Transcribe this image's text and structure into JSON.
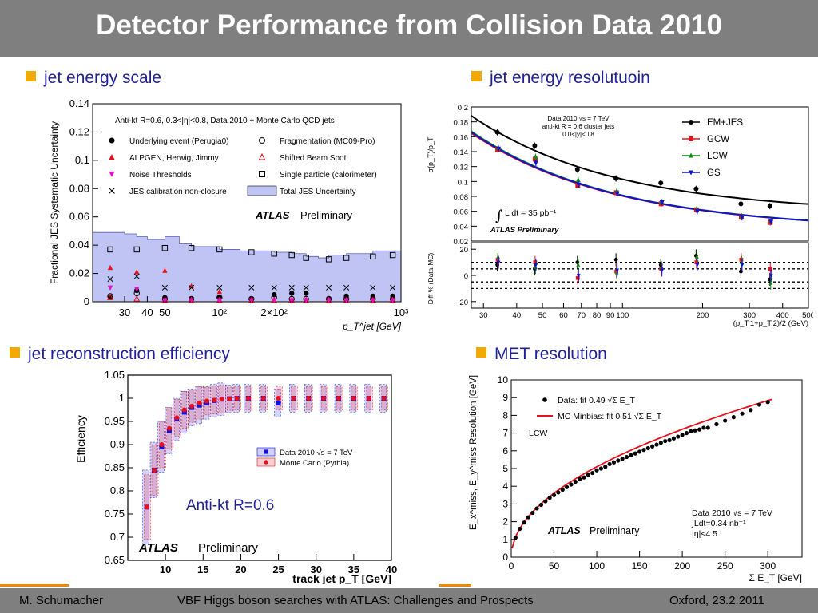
{
  "title": "Detector Performance from Collision Data 2010",
  "colors": {
    "accent_bullet": "#f2a900",
    "header_bg": "#7f7f7f",
    "bullet_text": "#1f1f9a"
  },
  "bullets": {
    "jes": "jet energy scale",
    "jer": "jet energy resolutuoin",
    "eff": "jet reconstruction efficiency",
    "met": "MET resolution"
  },
  "footer": {
    "author": "M. Schumacher",
    "talk": "VBF Higgs boson searches with ATLAS: Challenges and Prospects",
    "place_date": "Oxford, 23.2.2011"
  },
  "chart_data": [
    {
      "id": "jes",
      "type": "scatter",
      "title": "Anti-kt R=0.6, 0.3<|η|<0.8, Data 2010 + Monte Carlo QCD jets",
      "ylabel": "Fractional JES Systematic Uncertainty",
      "xlabel": "p_T^jet [GeV]",
      "xscale": "log",
      "xlim": [
        20,
        1000
      ],
      "ylim": [
        0,
        0.14
      ],
      "yticks": [
        "0",
        "0.02",
        "0.04",
        "0.06",
        "0.08",
        "0.1",
        "0.12",
        "0.14"
      ],
      "xticks": [
        {
          "v": 30,
          "label": "30"
        },
        {
          "v": 40,
          "label": "40"
        },
        {
          "v": 50,
          "label": "50"
        },
        {
          "v": 100,
          "label": "10²"
        },
        {
          "v": 200,
          "label": "2×10²"
        },
        {
          "v": 1000,
          "label": "10³"
        }
      ],
      "watermark": {
        "bold": "ATLAS",
        "rest": "Preliminary"
      },
      "legend": [
        {
          "label": "Underlying event (Perugia0)",
          "marker": "dot",
          "color": "#000000"
        },
        {
          "label": "Fragmentation (MC09-Pro)",
          "marker": "circle-open",
          "color": "#000000"
        },
        {
          "label": "ALPGEN, Herwig, Jimmy",
          "marker": "triangle",
          "color": "#e8101a"
        },
        {
          "label": "Shifted Beam Spot",
          "marker": "triangle-open",
          "color": "#e8101a"
        },
        {
          "label": "Noise Thresholds",
          "marker": "triangle-down",
          "color": "#e010c8"
        },
        {
          "label": "Single particle (calorimeter)",
          "marker": "square-open",
          "color": "#000000"
        },
        {
          "label": "JES calibration non-closure",
          "marker": "cross",
          "color": "#000000"
        },
        {
          "label": "Total JES Uncertainty",
          "marker": "band",
          "color": "#c0c4f4"
        }
      ],
      "band": {
        "x": [
          20,
          30,
          35,
          40,
          45,
          50,
          60,
          70,
          80,
          100,
          130,
          160,
          200,
          250,
          300,
          350,
          400,
          500,
          700,
          1000
        ],
        "y": [
          0.049,
          0.048,
          0.046,
          0.044,
          0.044,
          0.046,
          0.041,
          0.039,
          0.039,
          0.037,
          0.036,
          0.036,
          0.035,
          0.034,
          0.032,
          0.031,
          0.033,
          0.034,
          0.036,
          0.037
        ]
      },
      "series": [
        {
          "name": "Underlying event (Perugia0)",
          "marker": "dot",
          "color": "#000000",
          "x": [
            25,
            35,
            50,
            70,
            100,
            150,
            200,
            250,
            300,
            400,
            500,
            700,
            900
          ],
          "y": [
            0.003,
            0.008,
            0.003,
            0.002,
            0.003,
            0.002,
            0.005,
            0.006,
            0.006,
            0.002,
            0.004,
            0.004,
            0.004
          ]
        },
        {
          "name": "Fragmentation (MC09-Pro)",
          "marker": "circle-open",
          "color": "#000000",
          "x": [
            25,
            35,
            50,
            70,
            100,
            150,
            200,
            250,
            300,
            400,
            500,
            700,
            900
          ],
          "y": [
            0.004,
            0.006,
            0.002,
            0.002,
            0.003,
            0.002,
            0.003,
            0.002,
            0.002,
            0.002,
            0.002,
            0.002,
            0.002
          ]
        },
        {
          "name": "ALPGEN, Herwig, Jimmy",
          "marker": "triangle",
          "color": "#e8101a",
          "x": [
            25,
            35,
            50,
            70,
            100
          ],
          "y": [
            0.024,
            0.021,
            0.022,
            0.011,
            0.007
          ]
        },
        {
          "name": "Shifted Beam Spot",
          "marker": "triangle-open",
          "color": "#e8101a",
          "x": [
            25,
            35,
            50,
            70,
            100,
            150,
            200,
            250,
            300,
            400,
            500,
            700,
            900
          ],
          "y": [
            0.003,
            0.002,
            0.001,
            0.001,
            0.001,
            0.001,
            0.001,
            0.001,
            0.001,
            0.001,
            0.001,
            0.001,
            0.001
          ]
        },
        {
          "name": "Noise Thresholds",
          "marker": "triangle-down",
          "color": "#e010c8",
          "x": [
            25,
            35,
            50,
            70,
            100,
            150,
            200,
            250,
            300,
            400,
            500,
            700,
            900
          ],
          "y": [
            0.01,
            0.009,
            0.001,
            0.001,
            0.001,
            0.001,
            0.001,
            0.001,
            0.001,
            0.001,
            0.001,
            0.001,
            0.001
          ]
        },
        {
          "name": "Single particle (calorimeter)",
          "marker": "square-open",
          "color": "#000000",
          "x": [
            25,
            35,
            50,
            70,
            100,
            150,
            200,
            250,
            300,
            400,
            500,
            700,
            900
          ],
          "y": [
            0.037,
            0.037,
            0.038,
            0.038,
            0.037,
            0.035,
            0.034,
            0.033,
            0.031,
            0.03,
            0.031,
            0.032,
            0.033
          ]
        },
        {
          "name": "JES calibration non-closure",
          "marker": "cross",
          "color": "#000000",
          "x": [
            25,
            35,
            50,
            70,
            100,
            150,
            200,
            250,
            300,
            400,
            500,
            700,
            900
          ],
          "y": [
            0.016,
            0.018,
            0.01,
            0.01,
            0.01,
            0.01,
            0.01,
            0.01,
            0.01,
            0.01,
            0.01,
            0.01,
            0.01
          ]
        }
      ]
    },
    {
      "id": "jer",
      "type": "line",
      "ylabel": "σ(p_T)/p_T",
      "xlabel": "(p_T,1+p_T,2)/2 (GeV)",
      "xscale": "log",
      "xlim": [
        27,
        500
      ],
      "ylim": [
        0.02,
        0.2
      ],
      "yticks": [
        "0.02",
        "0.04",
        "0.06",
        "0.08",
        "0.1",
        "0.12",
        "0.14",
        "0.16",
        "0.18",
        "0.2"
      ],
      "xticks": [
        {
          "v": 30,
          "label": "30"
        },
        {
          "v": 40,
          "label": "40"
        },
        {
          "v": 50,
          "label": "50"
        },
        {
          "v": 60,
          "label": "60"
        },
        {
          "v": 70,
          "label": "70"
        },
        {
          "v": 80,
          "label": "80"
        },
        {
          "v": 90,
          "label": "90"
        },
        {
          "v": 100,
          "label": "100"
        },
        {
          "v": 200,
          "label": "200"
        },
        {
          "v": 300,
          "label": "300"
        },
        {
          "v": 400,
          "label": "400"
        },
        {
          "v": 500,
          "label": "500"
        }
      ],
      "info": [
        "Data 2010 √s = 7 TeV",
        "anti-kt R = 0.6 cluster jets",
        "0.0<|y|<0.8"
      ],
      "lumi": "L dt = 35 pb⁻¹",
      "watermark": "ATLAS Preliminary",
      "x_points": [
        34,
        47,
        68,
        95,
        140,
        190,
        280,
        360
      ],
      "series": [
        {
          "name": "EM+JES",
          "color": "#000000",
          "marker": "dot",
          "y": [
            0.166,
            0.148,
            0.116,
            0.104,
            0.098,
            0.09,
            0.07,
            0.067
          ],
          "fit": [
            0.2,
            0.057,
            0.0
          ]
        },
        {
          "name": "GCW",
          "color": "#e8101a",
          "marker": "square",
          "y": [
            0.143,
            0.13,
            0.095,
            0.085,
            0.07,
            0.062,
            0.052,
            0.045
          ],
          "fit": [
            0.18,
            0.048,
            -0.015
          ]
        },
        {
          "name": "LCW",
          "color": "#108a10",
          "marker": "triangle",
          "y": [
            0.145,
            0.133,
            0.102,
            0.087,
            0.072,
            0.063,
            0.053,
            0.047
          ],
          "fit": [
            0.18,
            0.048,
            -0.014
          ]
        },
        {
          "name": "GS",
          "color": "#1010d0",
          "marker": "triangle-down",
          "y": [
            0.144,
            0.125,
            0.096,
            0.084,
            0.072,
            0.06,
            0.052,
            0.046
          ],
          "fit": [
            0.18,
            0.047,
            -0.016
          ]
        }
      ],
      "diff": {
        "ylabel": "Diff % (Data-MC)",
        "ylim": [
          -25,
          25
        ],
        "yticks": [
          "-20",
          "0",
          "20"
        ],
        "dashed_lines": [
          10,
          5,
          -5,
          -10
        ],
        "values": [
          [
            8,
            5,
            10,
            12,
            8,
            15,
            3,
            -3
          ],
          [
            12,
            10,
            -2,
            3,
            5,
            10,
            12,
            5
          ],
          [
            14,
            6,
            8,
            2,
            6,
            14,
            10,
            -6
          ],
          [
            10,
            8,
            0,
            4,
            4,
            8,
            8,
            0
          ]
        ]
      }
    },
    {
      "id": "eff",
      "type": "scatter",
      "ylabel": "Efficiency",
      "xlabel": "track jet p_T [GeV]",
      "xlim": [
        5,
        40
      ],
      "ylim": [
        0.65,
        1.05
      ],
      "yticks": [
        "0.65",
        "0.7",
        "0.75",
        "0.8",
        "0.85",
        "0.9",
        "0.95",
        "1",
        "1.05"
      ],
      "xticks": [
        "10",
        "15",
        "20",
        "25",
        "30",
        "35",
        "40"
      ],
      "annotation": "Anti-kt R=0.6",
      "watermark": {
        "bold": "ATLAS",
        "rest": "Preliminary"
      },
      "series": [
        {
          "name": "Data 2010 √s = 7 TeV",
          "color": "#1010e0",
          "marker": "square",
          "x": [
            7.5,
            8.5,
            9.5,
            10.5,
            11.5,
            12.5,
            13.5,
            14.5,
            15.5,
            16.5,
            17.5,
            18.5,
            19.5,
            21,
            23,
            25,
            27,
            29,
            31,
            33,
            35,
            37,
            39
          ],
          "y": [
            0.765,
            0.845,
            0.895,
            0.93,
            0.955,
            0.97,
            0.98,
            0.985,
            0.99,
            0.995,
            0.998,
            0.999,
            1.0,
            1.0,
            1.0,
            0.99,
            1.0,
            1.0,
            1.0,
            1.0,
            1.0,
            1.0,
            1.0
          ],
          "err": [
            0.08,
            0.06,
            0.055,
            0.05,
            0.045,
            0.045,
            0.04,
            0.04,
            0.035,
            0.035,
            0.035,
            0.03,
            0.03,
            0.03,
            0.03,
            0.03,
            0.03,
            0.03,
            0.03,
            0.03,
            0.03,
            0.03,
            0.03
          ]
        },
        {
          "name": "Monte Carlo (Pythia)",
          "color": "#e8101a",
          "marker": "dot",
          "x": [
            7.5,
            8.5,
            9.5,
            10.5,
            11.5,
            12.5,
            13.5,
            14.5,
            15.5,
            16.5,
            17.5,
            18.5,
            19.5,
            21,
            23,
            25,
            27,
            29,
            31,
            33,
            35,
            37,
            39
          ],
          "y": [
            0.765,
            0.845,
            0.9,
            0.935,
            0.958,
            0.975,
            0.983,
            0.99,
            0.994,
            0.996,
            0.998,
            0.999,
            1.0,
            1.0,
            1.0,
            1.0,
            1.0,
            1.0,
            1.0,
            1.0,
            1.0,
            1.0,
            1.0
          ],
          "err": [
            0.07,
            0.055,
            0.05,
            0.045,
            0.04,
            0.04,
            0.035,
            0.035,
            0.03,
            0.03,
            0.03,
            0.025,
            0.025,
            0.025,
            0.025,
            0.025,
            0.025,
            0.025,
            0.025,
            0.025,
            0.025,
            0.025,
            0.025
          ]
        }
      ]
    },
    {
      "id": "met",
      "type": "scatter",
      "ylabel": "E_x^miss, E_y^miss Resolution [GeV]",
      "xlabel": "Σ E_T [GeV]",
      "xlim": [
        0,
        340
      ],
      "ylim": [
        0,
        10
      ],
      "yticks": [
        "0",
        "1",
        "2",
        "3",
        "4",
        "5",
        "6",
        "7",
        "8",
        "9",
        "10"
      ],
      "xticks": [
        "0",
        "50",
        "100",
        "150",
        "200",
        "250",
        "300"
      ],
      "legend": [
        {
          "label": "Data: fit 0.49 √Σ E_T",
          "marker": "dot",
          "color": "#000000"
        },
        {
          "label": "MC Minbias: fit 0.51 √Σ E_T",
          "marker": "line",
          "color": "#e8101a"
        }
      ],
      "calib": "LCW",
      "info": [
        "Data 2010 √s = 7 TeV",
        "∫Ldt=0.34 nb⁻¹",
        "|η|<4.5"
      ],
      "watermark": {
        "bold": "ATLAS",
        "rest": "Preliminary"
      },
      "data_fit_coef": 0.49,
      "mc_fit_coef": 0.51,
      "series": [
        {
          "name": "Data",
          "color": "#000000",
          "marker": "dot",
          "x": [
            5,
            10,
            15,
            20,
            25,
            30,
            35,
            40,
            45,
            50,
            55,
            60,
            65,
            70,
            75,
            80,
            85,
            90,
            95,
            100,
            105,
            110,
            115,
            120,
            125,
            130,
            135,
            140,
            145,
            150,
            155,
            160,
            165,
            170,
            175,
            180,
            185,
            190,
            195,
            200,
            205,
            210,
            215,
            220,
            225,
            230,
            240,
            250,
            260,
            270,
            280,
            290,
            300
          ],
          "y": [
            1.1,
            1.6,
            1.95,
            2.25,
            2.5,
            2.75,
            2.95,
            3.15,
            3.35,
            3.5,
            3.65,
            3.8,
            3.95,
            4.1,
            4.25,
            4.4,
            4.5,
            4.65,
            4.75,
            4.9,
            5.0,
            5.1,
            5.25,
            5.35,
            5.45,
            5.55,
            5.65,
            5.75,
            5.85,
            5.95,
            6.05,
            6.15,
            6.25,
            6.35,
            6.45,
            6.55,
            6.6,
            6.7,
            6.8,
            6.9,
            7.0,
            7.1,
            7.15,
            7.2,
            7.3,
            7.3,
            7.5,
            7.7,
            7.9,
            8.1,
            8.3,
            8.6,
            8.75
          ]
        }
      ]
    }
  ]
}
